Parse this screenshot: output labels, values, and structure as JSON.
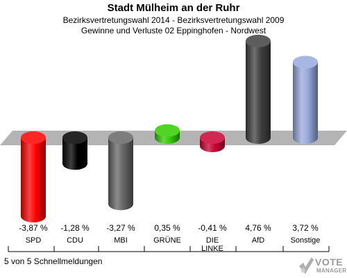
{
  "header": {
    "title": "Stadt Mülheim an der Ruhr",
    "subtitle1": "Bezirksvertretungswahl 2014 - Bezirksvertretungswahl 2009",
    "subtitle2": "Gewinne und Verluste 02 Eppinghofen - Nordwest"
  },
  "footer": {
    "status": "5 von 5 Schnellmeldungen"
  },
  "logo": {
    "line1": "VOTE",
    "line2": "MANAGER"
  },
  "chart_data": {
    "type": "bar",
    "title": "Stadt Mülheim an der Ruhr",
    "xlabel": "",
    "ylabel": "",
    "categories": [
      "SPD",
      "CDU",
      "MBI",
      "GRÜNE",
      "DIE LINKE",
      "AfD",
      "Sonstige"
    ],
    "category_lines": [
      [
        "SPD"
      ],
      [
        "CDU"
      ],
      [
        "MBI"
      ],
      [
        "GRÜNE"
      ],
      [
        "DIE",
        "LINKE"
      ],
      [
        "AfD"
      ],
      [
        "Sonstige"
      ]
    ],
    "values": [
      -3.87,
      -1.28,
      -3.27,
      0.35,
      -0.41,
      4.76,
      3.72
    ],
    "value_labels": [
      "-3,87 %",
      "-1,28 %",
      "-3,27 %",
      "0,35 %",
      "-0,41 %",
      "4,76 %",
      "3,72 %"
    ],
    "colors": [
      "#ff0000",
      "#000000",
      "#666666",
      "#33cc00",
      "#cc0033",
      "#404040",
      "#99aadd"
    ],
    "ylim": [
      -3.87,
      4.76
    ],
    "grid": false,
    "legend": "none"
  }
}
